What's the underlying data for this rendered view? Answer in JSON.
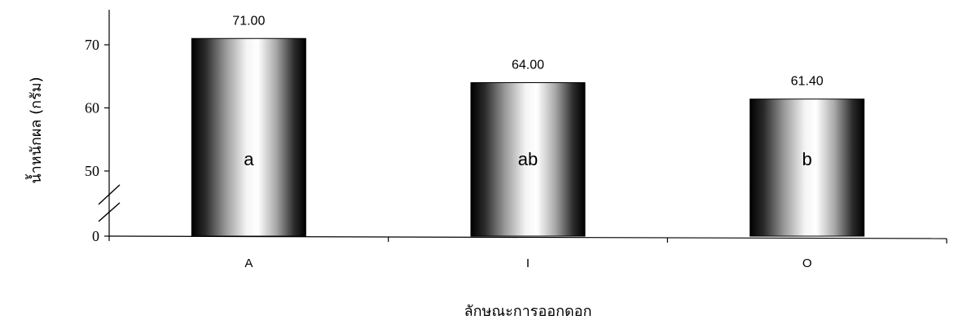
{
  "chart_data": {
    "type": "bar",
    "title": "",
    "xlabel": "ลักษณะการออกดอก",
    "ylabel": "น้ำหนักผล (กรัม)",
    "categories": [
      "A",
      "I",
      "O"
    ],
    "values": [
      71.0,
      64.0,
      61.4
    ],
    "value_labels": [
      "71.00",
      "64.00",
      "61.40"
    ],
    "group_letters": [
      "a",
      "ab",
      "b"
    ],
    "y_ticks": [
      0,
      50,
      60,
      70
    ],
    "y_tick_labels": [
      "0",
      "50",
      "60",
      "70"
    ],
    "ylim": [
      44,
      76
    ],
    "y_axis_break": [
      0,
      44
    ],
    "grid": false,
    "legend": "none",
    "bar_style": "cylindrical gradient, dark edges to light center"
  }
}
